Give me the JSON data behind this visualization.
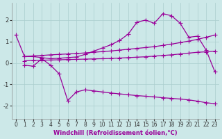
{
  "x_A": [
    0,
    1,
    2,
    3,
    4,
    5,
    6,
    7,
    8,
    9,
    10,
    11,
    12,
    13,
    14,
    15,
    16,
    17,
    18,
    19,
    20,
    21,
    22,
    23
  ],
  "y_A": [
    1.3,
    0.3,
    0.3,
    0.25,
    0.2,
    0.22,
    0.25,
    0.28,
    0.4,
    0.55,
    0.7,
    0.85,
    1.05,
    1.35,
    1.9,
    2.0,
    1.85,
    2.3,
    2.2,
    1.85,
    1.2,
    1.25,
    0.6,
    -0.4
  ],
  "x_B": [
    1,
    2,
    3,
    4,
    5,
    6,
    7,
    8,
    9,
    10,
    11,
    12,
    13,
    14,
    15,
    16,
    17,
    18,
    19,
    20,
    21,
    22,
    23
  ],
  "y_B": [
    0.3,
    0.33,
    0.35,
    0.38,
    0.4,
    0.42,
    0.44,
    0.47,
    0.5,
    0.53,
    0.56,
    0.6,
    0.64,
    0.68,
    0.72,
    0.76,
    0.82,
    0.88,
    0.95,
    1.02,
    1.1,
    1.2,
    1.3
  ],
  "x_C": [
    1,
    2,
    3,
    4,
    5,
    6,
    7,
    8,
    9,
    10,
    11,
    12,
    13,
    14,
    15,
    16,
    17,
    18,
    19,
    20,
    21,
    22,
    23
  ],
  "y_C": [
    0.1,
    0.12,
    0.13,
    0.14,
    0.15,
    0.16,
    0.17,
    0.18,
    0.19,
    0.2,
    0.21,
    0.23,
    0.25,
    0.27,
    0.29,
    0.32,
    0.35,
    0.38,
    0.42,
    0.46,
    0.5,
    0.52,
    0.55
  ],
  "x_D": [
    1,
    2,
    3,
    4,
    5,
    6,
    7,
    8,
    9,
    10,
    11,
    12,
    13,
    14,
    15,
    16,
    17,
    18,
    19,
    20,
    21,
    22,
    23
  ],
  "y_D": [
    -0.1,
    -0.15,
    0.2,
    -0.1,
    -0.5,
    -1.75,
    -1.35,
    -1.25,
    -1.3,
    -1.35,
    -1.4,
    -1.44,
    -1.48,
    -1.52,
    -1.55,
    -1.58,
    -1.62,
    -1.65,
    -1.68,
    -1.72,
    -1.78,
    -1.85,
    -1.9
  ],
  "color": "#990099",
  "bg_color": "#cce8e8",
  "grid_color": "#aacece",
  "xlabel": "Windchill (Refroidissement éolien,°C)",
  "xlim": [
    -0.5,
    23.5
  ],
  "ylim": [
    -2.6,
    2.8
  ],
  "yticks": [
    -2,
    -1,
    0,
    1,
    2
  ],
  "xticks": [
    0,
    1,
    2,
    3,
    4,
    5,
    6,
    7,
    8,
    9,
    10,
    11,
    12,
    13,
    14,
    15,
    16,
    17,
    18,
    19,
    20,
    21,
    22,
    23
  ],
  "marker": "+",
  "markersize": 4,
  "linewidth": 0.9,
  "xlabel_color": "#990099",
  "xlabel_fontsize": 6,
  "tick_fontsize": 5.5,
  "ytick_fontsize": 6
}
